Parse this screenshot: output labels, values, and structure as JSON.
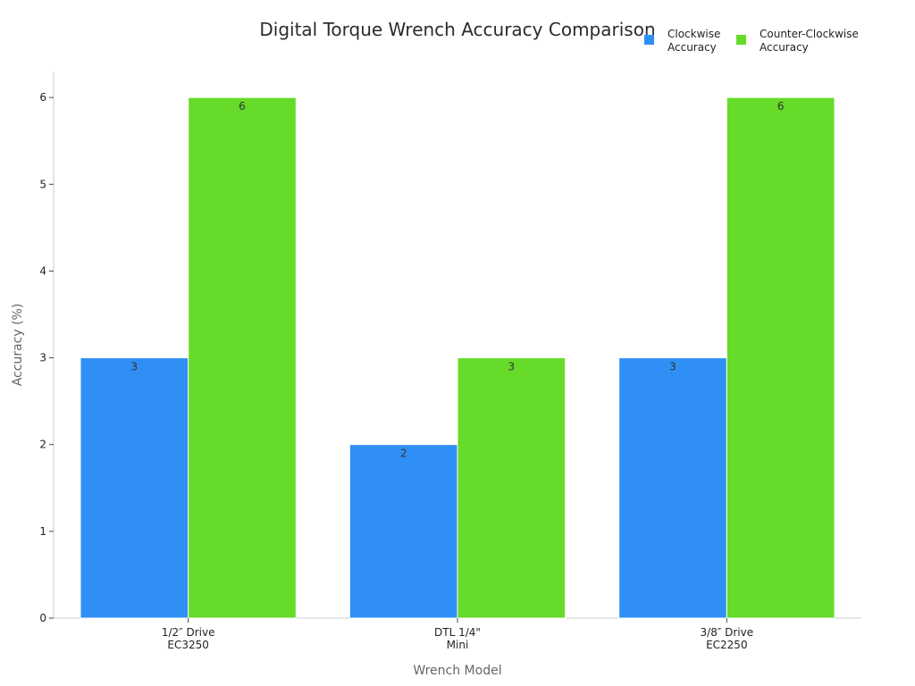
{
  "chart_data": {
    "type": "bar",
    "title": "Digital Torque Wrench Accuracy Comparison",
    "xlabel": "Wrench Model",
    "ylabel": "Accuracy (%)",
    "categories": [
      [
        "1/2″ Drive",
        "EC3250"
      ],
      [
        "DTL 1/4\"",
        "Mini"
      ],
      [
        "3/8″ Drive",
        "EC2250"
      ]
    ],
    "series": [
      {
        "name": [
          "Clockwise",
          "Accuracy"
        ],
        "color": "#2f8ff5",
        "values": [
          3,
          2,
          3
        ]
      },
      {
        "name": [
          "Counter-Clockwise",
          "Accuracy"
        ],
        "color": "#66db29",
        "values": [
          6,
          3,
          6
        ]
      }
    ],
    "ylim": [
      0,
      6.3
    ],
    "yticks": [
      0,
      1,
      2,
      3,
      4,
      5,
      6
    ],
    "grid": false,
    "legend": "top-right"
  }
}
